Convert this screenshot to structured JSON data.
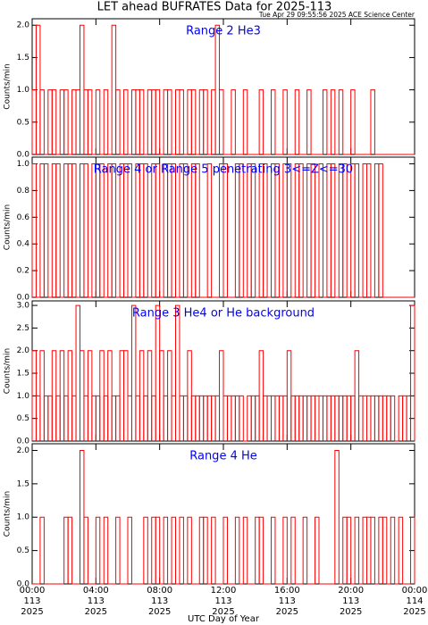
{
  "title": "LET ahead BUFRATES Data for 2025-113",
  "subtitle": "Tue Apr 29 09:55:56 2025 ACE Science Center",
  "chart_data": [
    {
      "type": "step",
      "title": "Range 2 He3",
      "ylabel": "Counts/min",
      "color": "#ff0000",
      "title_color": "#0000ff",
      "xlim": [
        0,
        24
      ],
      "xticks": [
        0,
        4,
        8,
        12,
        16,
        20,
        24
      ],
      "ylim": [
        0,
        2.1
      ],
      "yticks": [
        {
          "value": 0,
          "label": "0.0"
        },
        {
          "value": 0.5,
          "label": "0.5"
        },
        {
          "value": 1,
          "label": "1.0"
        },
        {
          "value": 1.5,
          "label": "1.5"
        },
        {
          "value": 2,
          "label": "2.0"
        }
      ],
      "x": [
        0,
        0.25,
        0.5,
        0.75,
        1,
        1.25,
        1.5,
        1.75,
        2,
        2.25,
        2.5,
        2.75,
        3,
        3.25,
        3.5,
        3.75,
        4,
        4.25,
        4.5,
        4.75,
        5,
        5.25,
        5.5,
        5.75,
        6,
        6.25,
        6.5,
        6.75,
        7,
        7.25,
        7.5,
        7.75,
        8,
        8.25,
        8.5,
        8.75,
        9,
        9.25,
        9.5,
        9.75,
        10,
        10.25,
        10.5,
        10.75,
        11,
        11.25,
        11.5,
        11.75,
        12,
        12.25,
        12.5,
        12.75,
        13,
        13.25,
        13.5,
        13.75,
        14,
        14.25,
        14.5,
        14.75,
        15,
        15.25,
        15.5,
        15.75,
        16,
        16.25,
        16.5,
        16.75,
        17,
        17.25,
        17.5,
        17.75,
        18,
        18.25,
        18.5,
        18.75,
        19,
        19.25,
        19.5,
        19.75,
        20,
        20.25,
        20.5,
        20.75,
        21,
        21.25,
        21.5,
        21.75,
        22,
        22.25,
        22.5,
        22.75,
        23,
        23.25,
        23.5,
        23.75
      ],
      "values": [
        1,
        2,
        1,
        0,
        1,
        1,
        0,
        1,
        1,
        0,
        1,
        1,
        2,
        1,
        1,
        0,
        1,
        0,
        1,
        0,
        2,
        1,
        0,
        1,
        0,
        1,
        1,
        1,
        0,
        1,
        1,
        1,
        0,
        1,
        1,
        0,
        1,
        1,
        0,
        1,
        1,
        0,
        1,
        1,
        0,
        1,
        2,
        1,
        0,
        0,
        1,
        0,
        0,
        1,
        0,
        0,
        0,
        1,
        0,
        0,
        1,
        0,
        0,
        1,
        0,
        0,
        1,
        0,
        0,
        1,
        0,
        0,
        0,
        1,
        0,
        1,
        0,
        1,
        0,
        0,
        1,
        0,
        0,
        0,
        0,
        1,
        0,
        0,
        0,
        0,
        0,
        0,
        0,
        0,
        0,
        0
      ]
    },
    {
      "type": "step",
      "title": "Range 4 or Range 5 penetrating 3<=Z<=30",
      "ylabel": "Counts/min",
      "color": "#ff0000",
      "title_color": "#0000ff",
      "xlim": [
        0,
        24
      ],
      "xticks": [
        0,
        4,
        8,
        12,
        16,
        20,
        24
      ],
      "ylim": [
        0,
        1.05
      ],
      "yticks": [
        {
          "value": 0,
          "label": "0.0"
        },
        {
          "value": 0.2,
          "label": "0.2"
        },
        {
          "value": 0.4,
          "label": "0.4"
        },
        {
          "value": 0.6,
          "label": "0.6"
        },
        {
          "value": 0.8,
          "label": "0.8"
        },
        {
          "value": 1,
          "label": "1.0"
        }
      ],
      "x": [
        0,
        0.25,
        0.5,
        0.75,
        1,
        1.25,
        1.5,
        1.75,
        2,
        2.25,
        2.5,
        2.75,
        3,
        3.25,
        3.5,
        3.75,
        4,
        4.25,
        4.5,
        4.75,
        5,
        5.25,
        5.5,
        5.75,
        6,
        6.25,
        6.5,
        6.75,
        7,
        7.25,
        7.5,
        7.75,
        8,
        8.25,
        8.5,
        8.75,
        9,
        9.25,
        9.5,
        9.75,
        10,
        10.25,
        10.5,
        10.75,
        11,
        11.25,
        11.5,
        11.75,
        12,
        12.25,
        12.5,
        12.75,
        13,
        13.25,
        13.5,
        13.75,
        14,
        14.25,
        14.5,
        14.75,
        15,
        15.25,
        15.5,
        15.75,
        16,
        16.25,
        16.5,
        16.75,
        17,
        17.25,
        17.5,
        17.75,
        18,
        18.25,
        18.5,
        18.75,
        19,
        19.25,
        19.5,
        19.75,
        20,
        20.25,
        20.5,
        20.75,
        21,
        21.25,
        21.5,
        21.75,
        22,
        22.25,
        22.5,
        22.75,
        23,
        23.25,
        23.5,
        23.75
      ],
      "values": [
        1,
        0,
        1,
        1,
        0,
        1,
        1,
        0,
        1,
        1,
        1,
        0,
        1,
        1,
        0,
        1,
        1,
        1,
        0,
        1,
        1,
        0,
        1,
        1,
        1,
        0,
        1,
        1,
        1,
        0,
        1,
        1,
        0,
        1,
        1,
        1,
        0,
        1,
        1,
        0,
        1,
        1,
        0,
        0,
        1,
        0,
        0,
        1,
        1,
        0,
        0,
        1,
        1,
        0,
        1,
        1,
        0,
        1,
        1,
        0,
        1,
        1,
        0,
        1,
        1,
        0,
        1,
        1,
        0,
        1,
        1,
        0,
        1,
        0,
        1,
        1,
        0,
        1,
        1,
        0,
        1,
        1,
        0,
        1,
        1,
        0,
        1,
        1,
        0,
        0,
        0,
        0,
        0,
        0,
        0,
        0
      ]
    },
    {
      "type": "step",
      "title": "Range 3 He4 or He background",
      "ylabel": "Counts/min",
      "color": "#ff0000",
      "title_color": "#0000ff",
      "xlim": [
        0,
        24
      ],
      "xticks": [
        0,
        4,
        8,
        12,
        16,
        20,
        24
      ],
      "ylim": [
        0,
        3.1
      ],
      "yticks": [
        {
          "value": 0,
          "label": "0.0"
        },
        {
          "value": 0.5,
          "label": "0.5"
        },
        {
          "value": 1,
          "label": "1.0"
        },
        {
          "value": 1.5,
          "label": "1.5"
        },
        {
          "value": 2,
          "label": "2.0"
        },
        {
          "value": 2.5,
          "label": "2.5"
        },
        {
          "value": 3,
          "label": "3.0"
        }
      ],
      "x": [
        0,
        0.25,
        0.5,
        0.75,
        1,
        1.25,
        1.5,
        1.75,
        2,
        2.25,
        2.5,
        2.75,
        3,
        3.25,
        3.5,
        3.75,
        4,
        4.25,
        4.5,
        4.75,
        5,
        5.25,
        5.5,
        5.75,
        6,
        6.25,
        6.5,
        6.75,
        7,
        7.25,
        7.5,
        7.75,
        8,
        8.25,
        8.5,
        8.75,
        9,
        9.25,
        9.5,
        9.75,
        10,
        10.25,
        10.5,
        10.75,
        11,
        11.25,
        11.5,
        11.75,
        12,
        12.25,
        12.5,
        12.75,
        13,
        13.25,
        13.5,
        13.75,
        14,
        14.25,
        14.5,
        14.75,
        15,
        15.25,
        15.5,
        15.75,
        16,
        16.25,
        16.5,
        16.75,
        17,
        17.25,
        17.5,
        17.75,
        18,
        18.25,
        18.5,
        18.75,
        19,
        19.25,
        19.5,
        19.75,
        20,
        20.25,
        20.5,
        20.75,
        21,
        21.25,
        21.5,
        21.75,
        22,
        22.25,
        22.5,
        22.75,
        23,
        23.25,
        23.5,
        23.75
      ],
      "values": [
        2,
        1,
        2,
        1,
        1,
        2,
        1,
        2,
        1,
        2,
        1,
        3,
        2,
        1,
        2,
        1,
        1,
        2,
        1,
        2,
        1,
        1,
        2,
        2,
        1,
        3,
        1,
        2,
        1,
        2,
        1,
        3,
        2,
        1,
        2,
        1,
        3,
        1,
        1,
        2,
        1,
        1,
        1,
        1,
        1,
        1,
        1,
        2,
        1,
        1,
        1,
        1,
        1,
        0,
        1,
        1,
        1,
        2,
        1,
        1,
        1,
        1,
        1,
        1,
        2,
        1,
        1,
        1,
        1,
        1,
        1,
        1,
        1,
        1,
        1,
        1,
        1,
        1,
        1,
        1,
        1,
        2,
        1,
        1,
        1,
        1,
        1,
        1,
        1,
        1,
        1,
        0,
        1,
        1,
        1,
        3
      ]
    },
    {
      "type": "step",
      "title": "Range 4 He",
      "ylabel": "Counts/min",
      "xlabel": "UTC Day of Year",
      "color": "#ff0000",
      "title_color": "#0000ff",
      "xlim": [
        0,
        24
      ],
      "xticks": [
        {
          "value": 0,
          "label": "00:00",
          "day": "113",
          "year": "2025"
        },
        {
          "value": 4,
          "label": "04:00",
          "day": "113",
          "year": "2025"
        },
        {
          "value": 8,
          "label": "08:00",
          "day": "113",
          "year": "2025"
        },
        {
          "value": 12,
          "label": "12:00",
          "day": "113",
          "year": "2025"
        },
        {
          "value": 16,
          "label": "16:00",
          "day": "113",
          "year": "2025"
        },
        {
          "value": 20,
          "label": "20:00",
          "day": "113",
          "year": "2025"
        },
        {
          "value": 24,
          "label": "00:00",
          "day": "114",
          "year": "2025"
        }
      ],
      "ylim": [
        0,
        2.1
      ],
      "yticks": [
        {
          "value": 0,
          "label": "0.0"
        },
        {
          "value": 0.5,
          "label": "0.5"
        },
        {
          "value": 1,
          "label": "1.0"
        },
        {
          "value": 1.5,
          "label": "1.5"
        },
        {
          "value": 2,
          "label": "2.0"
        }
      ],
      "x": [
        0,
        0.25,
        0.5,
        0.75,
        1,
        1.25,
        1.5,
        1.75,
        2,
        2.25,
        2.5,
        2.75,
        3,
        3.25,
        3.5,
        3.75,
        4,
        4.25,
        4.5,
        4.75,
        5,
        5.25,
        5.5,
        5.75,
        6,
        6.25,
        6.5,
        6.75,
        7,
        7.25,
        7.5,
        7.75,
        8,
        8.25,
        8.5,
        8.75,
        9,
        9.25,
        9.5,
        9.75,
        10,
        10.25,
        10.5,
        10.75,
        11,
        11.25,
        11.5,
        11.75,
        12,
        12.25,
        12.5,
        12.75,
        13,
        13.25,
        13.5,
        13.75,
        14,
        14.25,
        14.5,
        14.75,
        15,
        15.25,
        15.5,
        15.75,
        16,
        16.25,
        16.5,
        16.75,
        17,
        17.25,
        17.5,
        17.75,
        18,
        18.25,
        18.5,
        18.75,
        19,
        19.25,
        19.5,
        19.75,
        20,
        20.25,
        20.5,
        20.75,
        21,
        21.25,
        21.5,
        21.75,
        22,
        22.25,
        22.5,
        22.75,
        23,
        23.25,
        23.5,
        23.75
      ],
      "values": [
        0,
        0,
        1,
        0,
        0,
        0,
        0,
        0,
        1,
        1,
        0,
        0,
        2,
        1,
        0,
        0,
        1,
        0,
        1,
        0,
        0,
        1,
        0,
        0,
        1,
        0,
        0,
        0,
        1,
        0,
        1,
        1,
        0,
        1,
        0,
        1,
        0,
        1,
        0,
        1,
        0,
        0,
        1,
        1,
        0,
        1,
        0,
        0,
        1,
        0,
        0,
        1,
        0,
        1,
        0,
        0,
        1,
        1,
        0,
        0,
        1,
        0,
        0,
        1,
        0,
        1,
        0,
        0,
        1,
        0,
        0,
        1,
        0,
        0,
        0,
        0,
        2,
        0,
        1,
        1,
        0,
        1,
        0,
        1,
        1,
        1,
        0,
        1,
        1,
        0,
        1,
        0,
        1,
        0,
        0,
        1
      ]
    }
  ]
}
